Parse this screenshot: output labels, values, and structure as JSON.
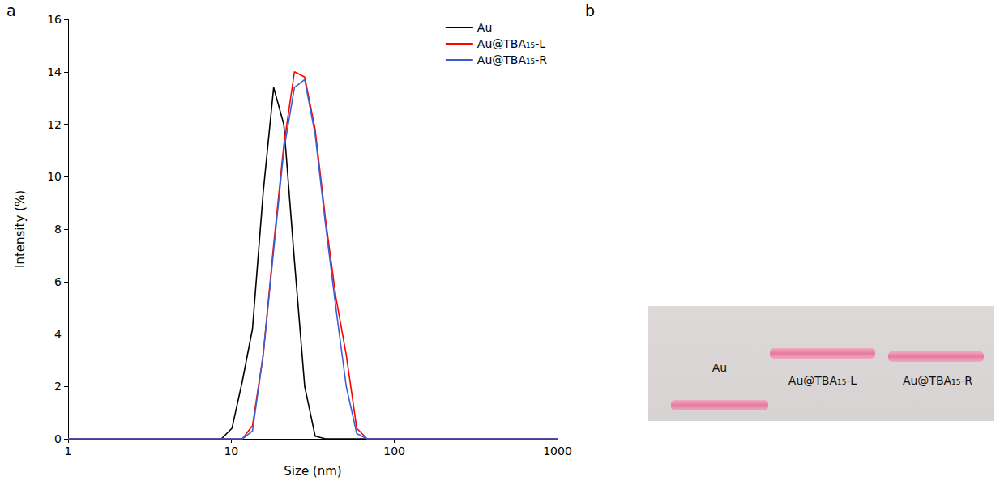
{
  "chart_data": {
    "type": "line",
    "panel": "a",
    "x_label": "Size (nm)",
    "y_label": "Intensity (%)",
    "log": "x",
    "x": [
      1,
      8.7,
      10.1,
      11.7,
      13.5,
      15.7,
      18.2,
      21.0,
      24.4,
      28.2,
      32.7,
      37.8,
      43.8,
      50.7,
      58.8,
      68.1,
      1000
    ],
    "series": [
      {
        "name": "Au",
        "color": "#000000",
        "values": [
          0,
          0,
          0.4,
          2.2,
          4.2,
          9.4,
          13.4,
          12.0,
          6.8,
          2.0,
          0.1,
          0,
          0,
          0,
          0,
          0,
          0
        ]
      },
      {
        "name": "Au@TBA₁₅-L",
        "color": "#ff0000",
        "values": [
          0,
          0,
          0,
          0,
          0.5,
          3.2,
          7.4,
          11.2,
          14.0,
          13.8,
          11.8,
          8.4,
          5.4,
          3.2,
          0.4,
          0,
          0
        ]
      },
      {
        "name": "Au@TBA₁₅-R",
        "color": "#3c5fd0",
        "values": [
          0,
          0,
          0,
          0,
          0.3,
          3.2,
          7.2,
          11.0,
          13.4,
          13.7,
          11.6,
          8.2,
          5.0,
          2.0,
          0.2,
          0,
          0
        ]
      }
    ],
    "xlim": [
      1,
      1000
    ],
    "xticks": [
      1,
      10,
      100,
      1000
    ],
    "ylim": [
      0,
      16
    ],
    "yticks": [
      0,
      2,
      4,
      6,
      8,
      10,
      12,
      14,
      16
    ],
    "grid": false,
    "legend": "upper right"
  },
  "gel": {
    "panel": "b",
    "lanes": [
      "Au",
      "Au@TBA₁₅-L",
      "Au@TBA₁₅-R"
    ]
  }
}
